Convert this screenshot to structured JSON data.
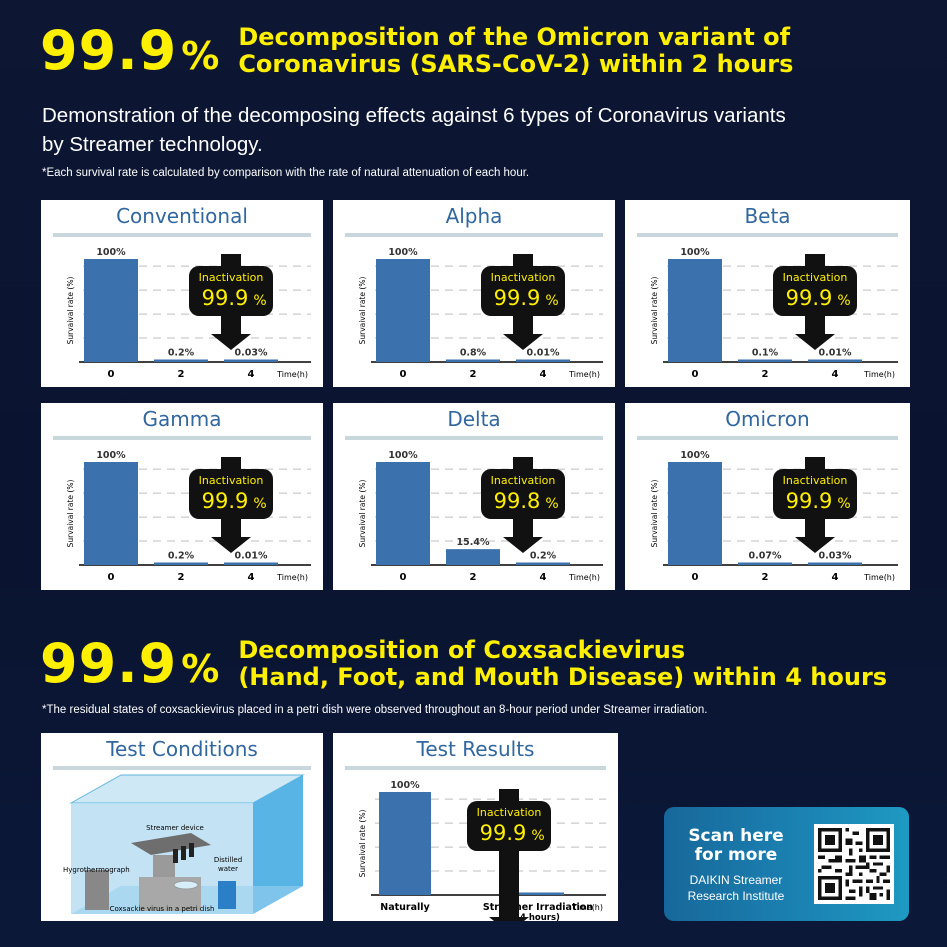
{
  "section1": {
    "big_number": "99.9",
    "big_unit": "%",
    "headline_line1": "Decomposition of the Omicron variant of",
    "headline_line2": "Coronavirus (SARS-CoV-2) within 2 hours",
    "subtitle_line1": "Demonstration of the decomposing effects against 6 types of Coronavirus variants",
    "subtitle_line2": "by Streamer technology.",
    "note": "*Each survival rate is calculated by comparison with  the rate of natural attenuation of each hour."
  },
  "section2": {
    "big_number": "99.9",
    "big_unit": "%",
    "headline_line1": "Decomposition of Coxsackievirus",
    "headline_line2": "(Hand, Foot, and Mouth Disease) within 4 hours",
    "note": "*The residual states of coxsackievirus placed in a petri dish were observed throughout an 8-hour period under Streamer irradiation."
  },
  "chart_common": {
    "ylabel": "Survaival rate (%)",
    "xlabel": "Time(h)",
    "badge_label": "Inactivation",
    "badge_unit": "%",
    "bar_color": "#3b72ad",
    "badge_value_color": "#ffef00"
  },
  "chart_data": [
    {
      "type": "bar",
      "title": "Conventional",
      "categories": [
        "0",
        "2",
        "4"
      ],
      "values": [
        100,
        0.2,
        0.03
      ],
      "value_labels": [
        "100%",
        "0.2%",
        "0.03%"
      ],
      "inactivation": "99.9",
      "ylim": [
        0,
        100
      ]
    },
    {
      "type": "bar",
      "title": "Alpha",
      "categories": [
        "0",
        "2",
        "4"
      ],
      "values": [
        100,
        0.8,
        0.01
      ],
      "value_labels": [
        "100%",
        "0.8%",
        "0.01%"
      ],
      "inactivation": "99.9",
      "ylim": [
        0,
        100
      ]
    },
    {
      "type": "bar",
      "title": "Beta",
      "categories": [
        "0",
        "2",
        "4"
      ],
      "values": [
        100,
        0.1,
        0.01
      ],
      "value_labels": [
        "100%",
        "0.1%",
        "0.01%"
      ],
      "inactivation": "99.9",
      "ylim": [
        0,
        100
      ]
    },
    {
      "type": "bar",
      "title": "Gamma",
      "categories": [
        "0",
        "2",
        "4"
      ],
      "values": [
        100,
        0.2,
        0.01
      ],
      "value_labels": [
        "100%",
        "0.2%",
        "0.01%"
      ],
      "inactivation": "99.9",
      "ylim": [
        0,
        100
      ]
    },
    {
      "type": "bar",
      "title": "Delta",
      "categories": [
        "0",
        "2",
        "4"
      ],
      "values": [
        100,
        15.4,
        0.2
      ],
      "value_labels": [
        "100%",
        "15.4%",
        "0.2%"
      ],
      "inactivation": "99.8",
      "ylim": [
        0,
        100
      ]
    },
    {
      "type": "bar",
      "title": "Omicron",
      "categories": [
        "0",
        "2",
        "4"
      ],
      "values": [
        100,
        0.07,
        0.03
      ],
      "value_labels": [
        "100%",
        "0.07%",
        "0.03%"
      ],
      "inactivation": "99.9",
      "ylim": [
        0,
        100
      ]
    },
    {
      "type": "bar",
      "title": "Test Results",
      "categories": [
        "Naturally",
        "Streamer Irradiation"
      ],
      "category_sublabels": [
        "",
        "(4 hours)"
      ],
      "values": [
        100,
        0.1
      ],
      "value_labels": [
        "100%",
        ""
      ],
      "inactivation": "99.9",
      "ylim": [
        0,
        100
      ]
    }
  ],
  "test_conditions": {
    "title": "Test Conditions",
    "label_streamer": "Streamer device",
    "label_hygro": "Hygrothermograph",
    "label_water_1": "Distilled",
    "label_water_2": "water",
    "label_virus": "Coxsackie virus in a petri dish"
  },
  "cta": {
    "scan_line1": "Scan here",
    "scan_line2": "for more",
    "institute_line1": "DAIKIN Streamer",
    "institute_line2": "Research Institute",
    "qr_icon": "qr-code-icon"
  }
}
